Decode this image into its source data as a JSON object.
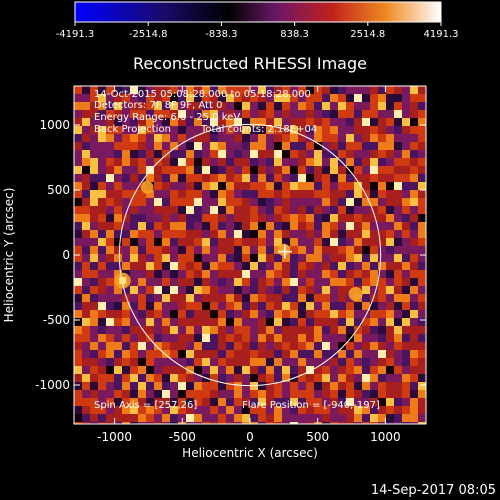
{
  "chart_data": {
    "type": "heatmap",
    "title": "Reconstructed RHESSI Image",
    "xlabel": "Heliocentric X (arcsec)",
    "ylabel": "Heliocentric Y (arcsec)",
    "xlim": [
      -1300,
      1300
    ],
    "ylim": [
      -1300,
      1300
    ],
    "xticks": [
      -1000,
      -500,
      0,
      500,
      1000
    ],
    "yticks": [
      -1000,
      -500,
      0,
      500,
      1000
    ],
    "colorbar": {
      "range": [
        -4191.3,
        4191.3
      ],
      "ticks": [
        "-4191.3",
        "-2514.8",
        "-838.3",
        "838.3",
        "2514.8",
        "4191.3"
      ],
      "colors": [
        "#0000ff",
        "#000000",
        "#5a1a66",
        "#b02226",
        "#e8411a",
        "#f5a82a",
        "#ffffff"
      ]
    },
    "annotations": {
      "time_range": "14-Oct-2015 05:08:28.000 to 05:18:28.000",
      "detectors": "Detectors: 7F 8F 9F, Att 0",
      "energy": "Energy Range: 6.0 - 25.0 keV",
      "method": "Back Projection",
      "counts": "Total counts: 2.18E+04",
      "spin_axis": "Spin Axis = [257,26]",
      "flare_position": "Flare Position = [-940,-197]"
    },
    "solar_limb_radius_arcsec": 965,
    "spin_axis_marker": [
      257,
      26
    ],
    "flare_position_marker": [
      -940,
      -197
    ],
    "bright_sources": [
      {
        "x": -940,
        "y": -197,
        "level": 1.0
      },
      {
        "x": 780,
        "y": -300,
        "level": 0.75
      },
      {
        "x": -760,
        "y": 520,
        "level": 0.6
      },
      {
        "x": 250,
        "y": 40,
        "level": 0.55
      }
    ]
  },
  "footer": {
    "date": "14-Sep-2017 08:05"
  }
}
